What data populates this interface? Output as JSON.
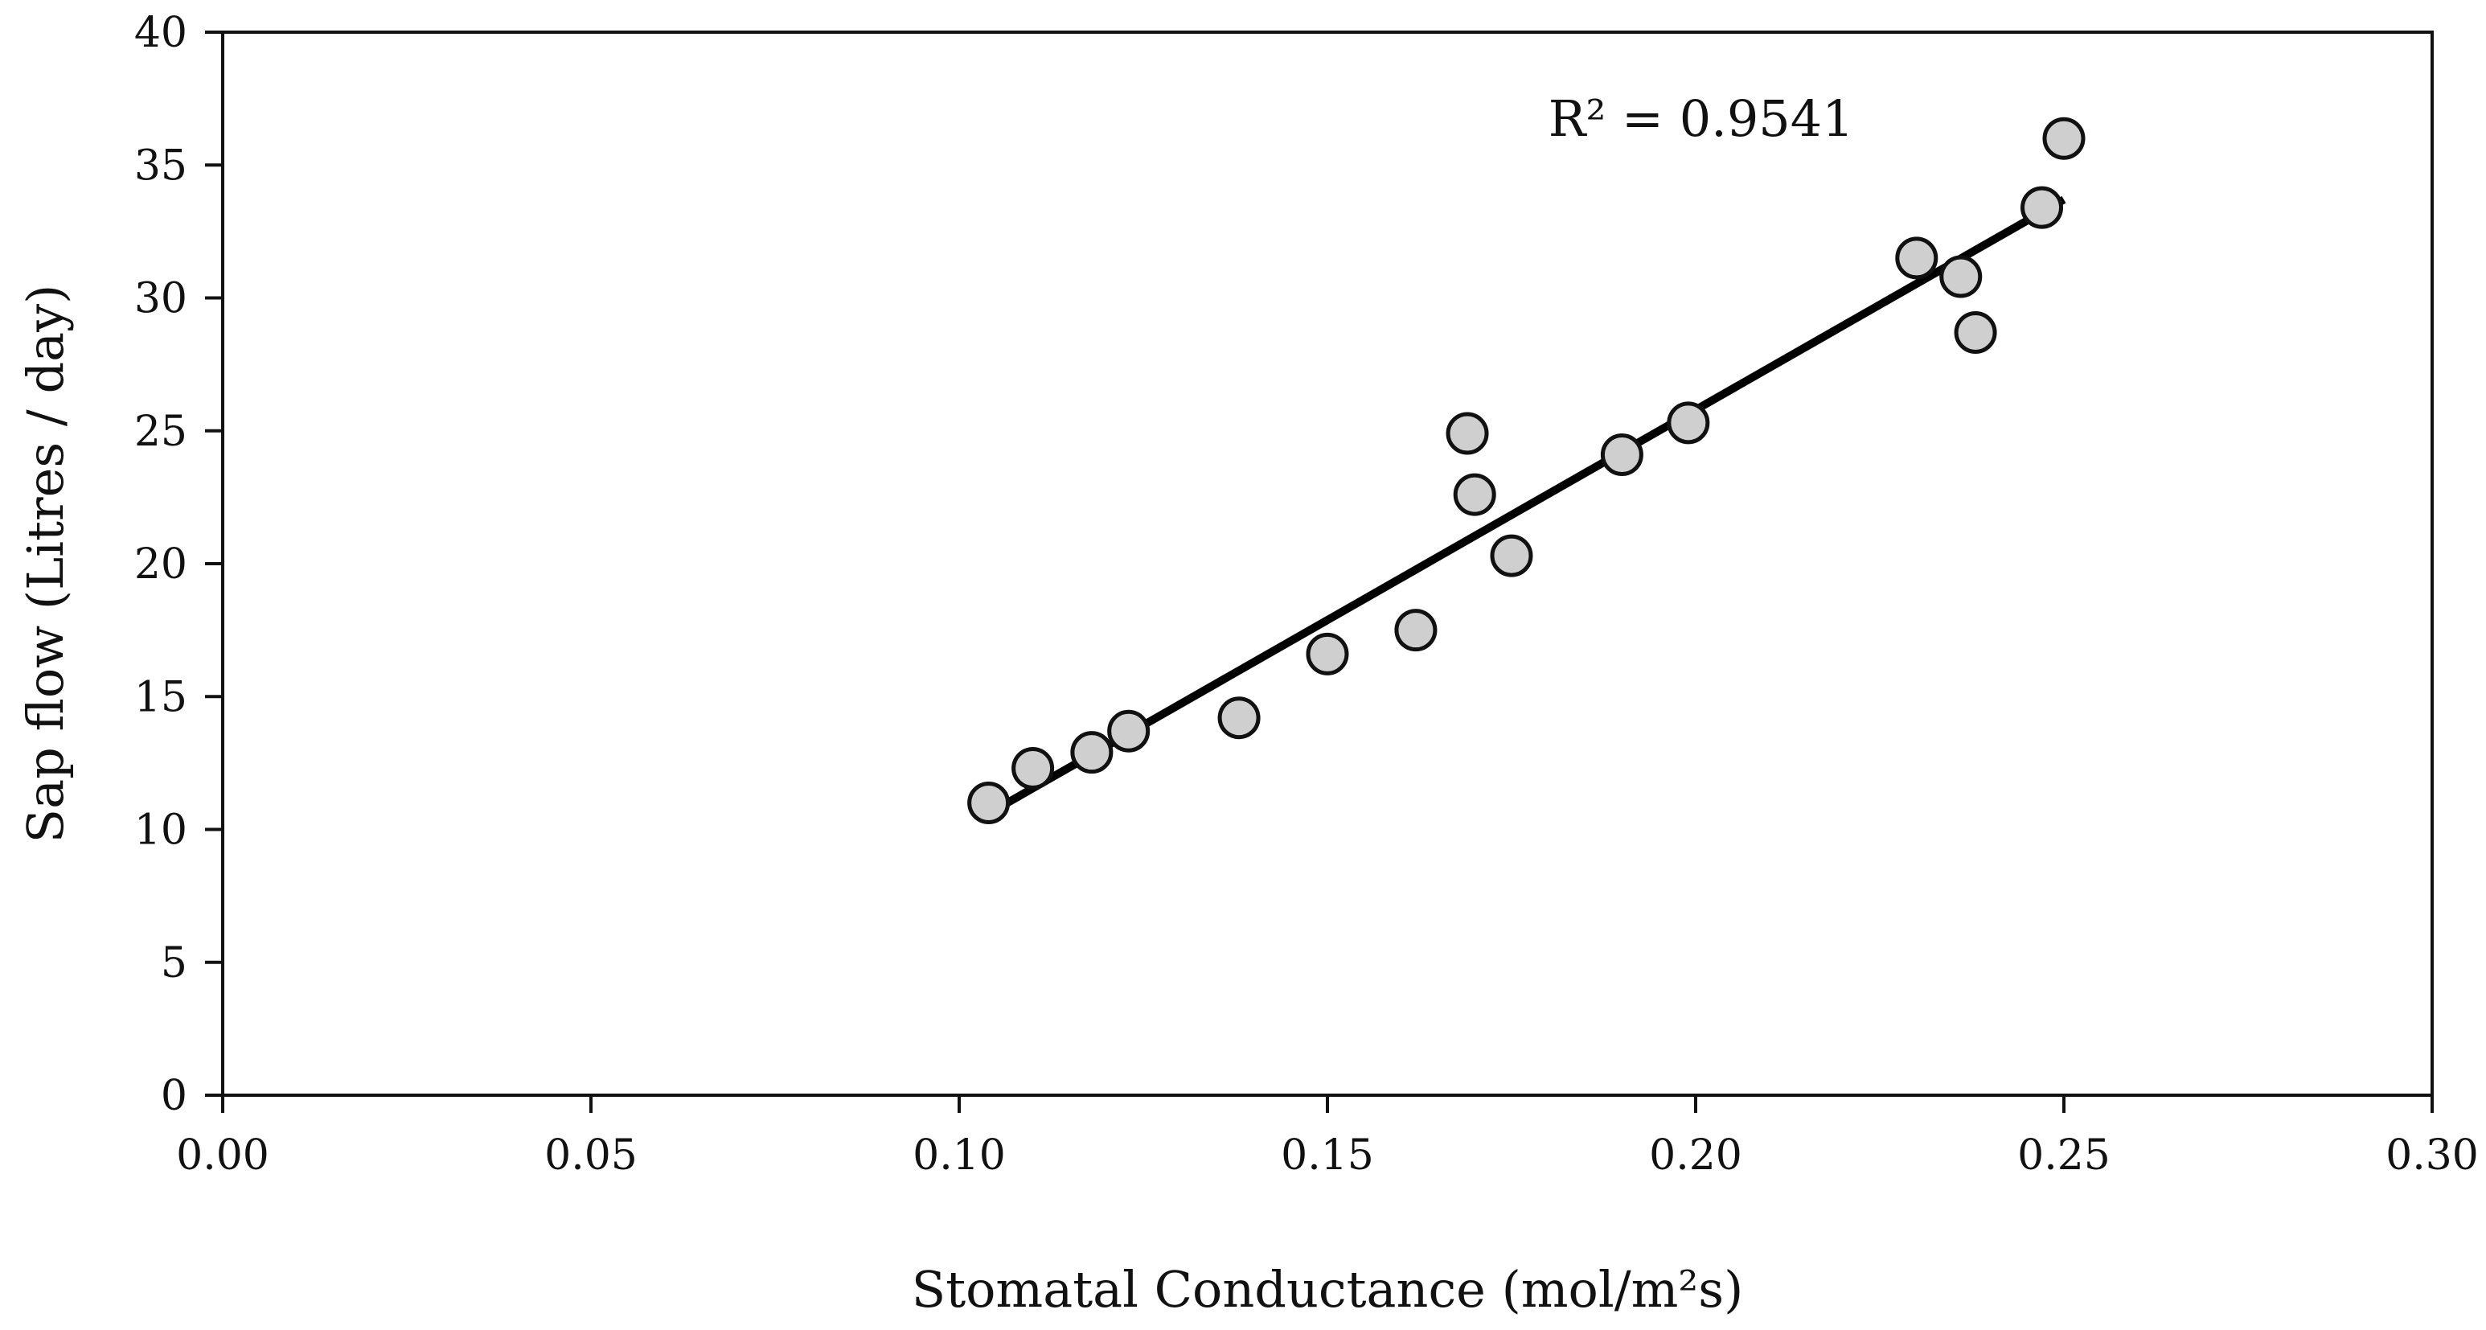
{
  "chart_data": {
    "type": "scatter",
    "title": "",
    "xlabel": "Stomatal Conductance (mol/m²s)",
    "ylabel": "Sap flow (Litres / day)",
    "xlim": [
      0,
      0.3
    ],
    "ylim": [
      0,
      40
    ],
    "x_ticks": [
      0,
      0.05,
      0.1,
      0.15,
      0.2,
      0.25,
      0.3
    ],
    "x_tick_labels": [
      "0.00",
      "0.05",
      "0.10",
      "0.15",
      "0.20",
      "0.25",
      "0.30"
    ],
    "y_ticks": [
      0,
      5,
      10,
      15,
      20,
      25,
      30,
      35,
      40
    ],
    "y_tick_labels": [
      "0",
      "5",
      "10",
      "15",
      "20",
      "25",
      "30",
      "35",
      "40"
    ],
    "grid": false,
    "legend": "none",
    "series": [
      {
        "name": "Sap flow",
        "marker": "circle",
        "color": "#cfcfcf",
        "edge_color": "#111111",
        "points": [
          {
            "x": 0.104,
            "y": 11.0
          },
          {
            "x": 0.11,
            "y": 12.3
          },
          {
            "x": 0.118,
            "y": 12.9
          },
          {
            "x": 0.123,
            "y": 13.7
          },
          {
            "x": 0.138,
            "y": 14.2
          },
          {
            "x": 0.15,
            "y": 16.6
          },
          {
            "x": 0.162,
            "y": 17.5
          },
          {
            "x": 0.169,
            "y": 24.9
          },
          {
            "x": 0.17,
            "y": 22.6
          },
          {
            "x": 0.175,
            "y": 20.3
          },
          {
            "x": 0.19,
            "y": 24.1
          },
          {
            "x": 0.199,
            "y": 25.3
          },
          {
            "x": 0.23,
            "y": 31.5
          },
          {
            "x": 0.236,
            "y": 30.8
          },
          {
            "x": 0.238,
            "y": 28.7
          },
          {
            "x": 0.247,
            "y": 33.4
          },
          {
            "x": 0.25,
            "y": 36.0
          }
        ]
      }
    ],
    "trendline": {
      "type": "linear",
      "color": "#000000",
      "x": [
        0.104,
        0.25
      ],
      "y": [
        10.6,
        33.7
      ]
    },
    "annotations": [
      {
        "text": "R² = 0.9541",
        "x": 0.18,
        "y": 36.7
      }
    ]
  }
}
